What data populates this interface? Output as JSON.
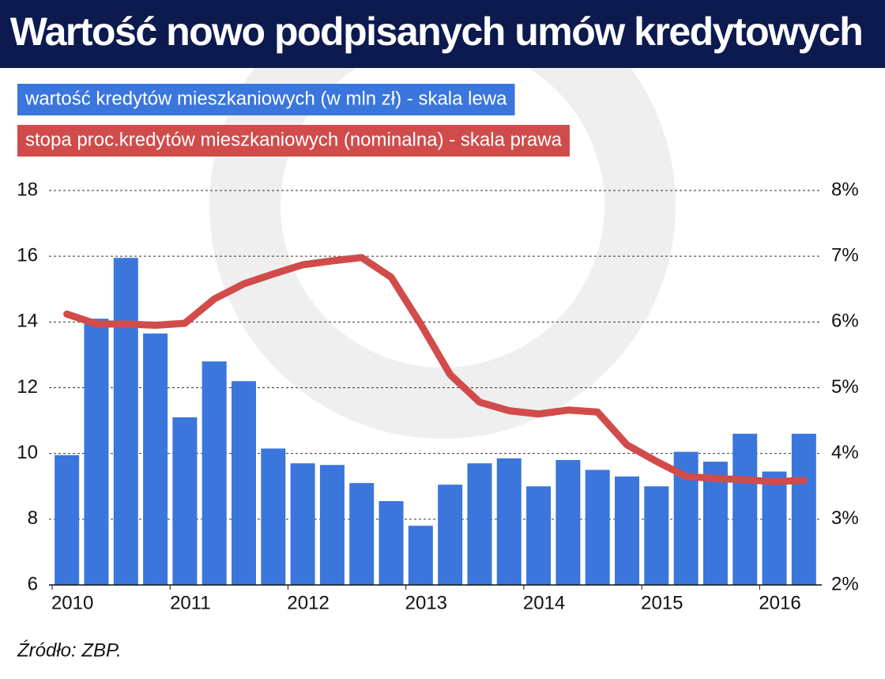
{
  "chart_data": {
    "type": "bar-line",
    "title": "Wartość nowo podpisanych umów kredytowych",
    "source": "Źródło: ZBP.",
    "categories": [
      "2010",
      null,
      null,
      null,
      "2011",
      null,
      null,
      null,
      "2012",
      null,
      null,
      null,
      "2013",
      null,
      null,
      null,
      "2014",
      null,
      null,
      null,
      "2015",
      null,
      null,
      null,
      "2016",
      null
    ],
    "series": [
      {
        "name": "wartość kredytów mieszkaniowych (w mln zł) - skala lewa",
        "color": "#3a76db",
        "type": "bar",
        "values": [
          9.95,
          14.1,
          15.95,
          13.65,
          11.1,
          12.8,
          12.2,
          10.15,
          9.7,
          9.65,
          9.1,
          8.55,
          7.8,
          9.05,
          9.7,
          9.85,
          9.0,
          9.8,
          9.5,
          9.3,
          9.0,
          10.05,
          9.75,
          10.6,
          9.45,
          10.6
        ]
      },
      {
        "name": "stopa proc.kredytów mieszkaniowych (nominalna) - skala prawa",
        "color": "#d24b4b",
        "type": "line",
        "axis": "y2",
        "values": [
          6.12,
          5.97,
          5.97,
          5.95,
          5.98,
          6.35,
          6.58,
          6.73,
          6.87,
          6.93,
          6.98,
          6.68,
          5.97,
          5.2,
          4.78,
          4.65,
          4.6,
          4.66,
          4.63,
          4.13,
          3.88,
          3.65,
          3.62,
          3.6,
          3.57,
          3.59
        ]
      }
    ],
    "ylim": [
      6,
      18
    ],
    "yticks": [
      6,
      8,
      10,
      12,
      14,
      16,
      18
    ],
    "y2lim": [
      2,
      8
    ],
    "y2ticks": [
      {
        "value": 2,
        "label": "2%"
      },
      {
        "value": 3,
        "label": "3%"
      },
      {
        "value": 4,
        "label": "4%"
      },
      {
        "value": 5,
        "label": "5%"
      },
      {
        "value": 6,
        "label": "6%"
      },
      {
        "value": 7,
        "label": "7%"
      },
      {
        "value": 8,
        "label": "8%"
      }
    ],
    "grid": true
  }
}
